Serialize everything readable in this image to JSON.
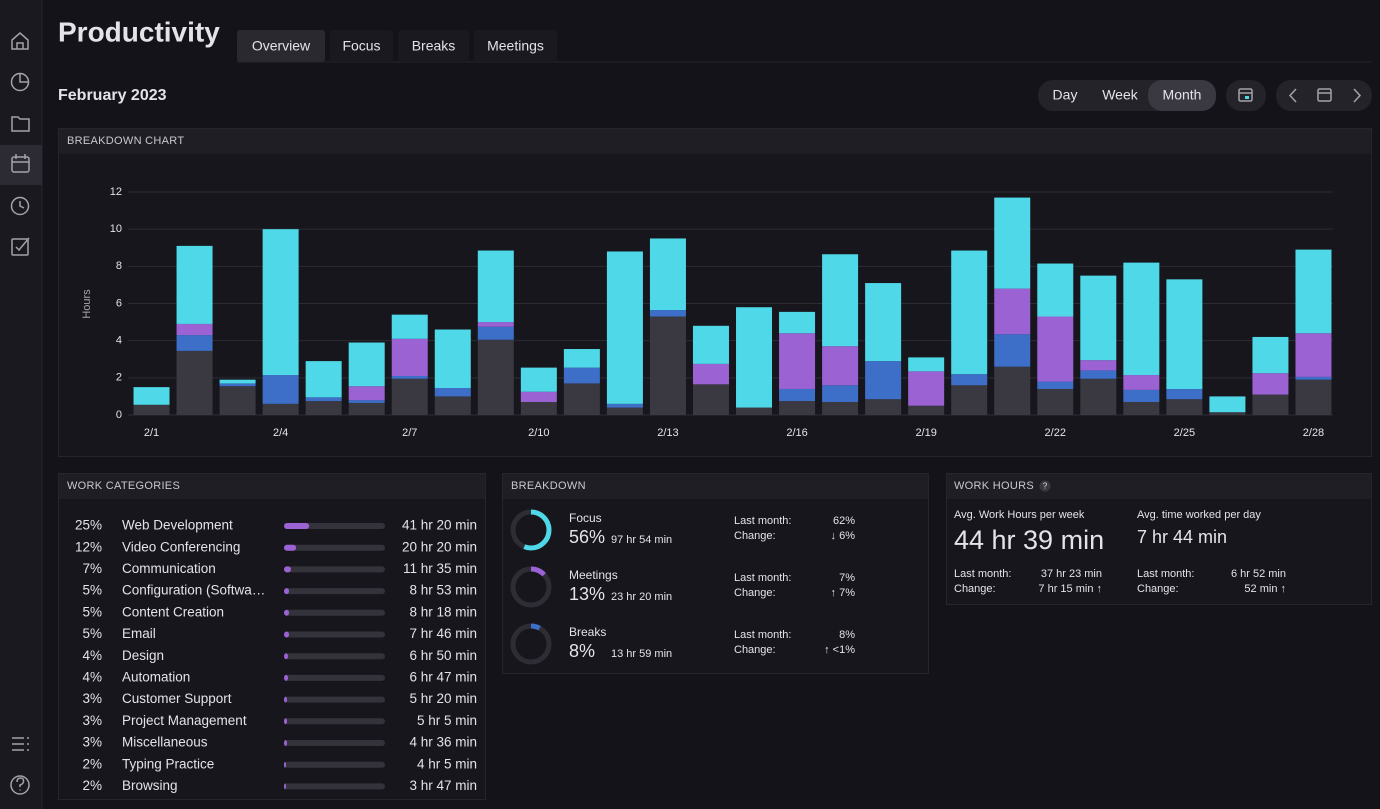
{
  "header": {
    "title": "Productivity",
    "tabs": [
      "Overview",
      "Focus",
      "Breaks",
      "Meetings"
    ],
    "active_tab": 0
  },
  "toolbar": {
    "period": "February 2023",
    "ranges": [
      "Day",
      "Week",
      "Month"
    ],
    "active_range": 2
  },
  "chart_data": {
    "type": "bar",
    "stacked": true,
    "title": "BREAKDOWN CHART",
    "y_label": "Hours",
    "categories": [
      "2/1",
      null,
      null,
      "2/4",
      null,
      null,
      "2/7",
      null,
      null,
      "2/10",
      null,
      null,
      "2/13",
      null,
      null,
      "2/16",
      null,
      null,
      "2/19",
      null,
      null,
      "2/22",
      null,
      null,
      "2/25",
      null,
      null,
      "2/28"
    ],
    "series": [
      {
        "color": "#3a3941",
        "values": [
          0.55,
          3.45,
          1.55,
          0.6,
          0.75,
          0.65,
          1.95,
          1.0,
          4.05,
          0.7,
          1.7,
          0.4,
          5.3,
          1.65,
          0.4,
          0.75,
          0.7,
          0.85,
          0.5,
          1.6,
          2.6,
          1.4,
          1.95,
          0.7,
          0.85,
          0.15,
          1.1,
          1.9
        ]
      },
      {
        "color": "#3d6fc8",
        "values": [
          0,
          0.85,
          0.15,
          1.55,
          0.2,
          0.15,
          0.15,
          0.45,
          0.7,
          0,
          0.85,
          0.2,
          0.35,
          0,
          0,
          0.65,
          0.9,
          2.05,
          0,
          0.6,
          1.75,
          0.4,
          0.45,
          0.65,
          0.55,
          0,
          0,
          0.15
        ]
      },
      {
        "color": "#9b62d4",
        "values": [
          0,
          0.6,
          0,
          0,
          0,
          0.75,
          2.0,
          0,
          0.25,
          0.55,
          0,
          0,
          0,
          1.1,
          0,
          3.0,
          2.1,
          0,
          1.85,
          0,
          2.45,
          3.5,
          0.55,
          0.8,
          0,
          0,
          1.15,
          2.35
        ]
      },
      {
        "color": "#4fd8e8",
        "values": [
          0.95,
          4.2,
          0.2,
          7.85,
          1.95,
          2.35,
          1.3,
          3.15,
          3.85,
          1.3,
          1.0,
          8.2,
          3.85,
          2.05,
          5.4,
          1.15,
          4.95,
          4.2,
          0.75,
          6.65,
          4.9,
          2.85,
          4.55,
          6.05,
          5.9,
          0.85,
          1.95,
          4.5
        ]
      }
    ],
    "ylim": [
      0,
      12
    ],
    "yticks": [
      0,
      2,
      4,
      6,
      8,
      10,
      12
    ],
    "grid": true
  },
  "work_categories": {
    "title": "WORK CATEGORIES",
    "bar_color": "#9b62d4",
    "rows": [
      {
        "share": 25,
        "share_label": "25%",
        "name": "Web Development",
        "time": "41 hr 20 min"
      },
      {
        "share": 12,
        "share_label": "12%",
        "name": "Video Conferencing",
        "time": "20 hr 20 min"
      },
      {
        "share": 7,
        "share_label": "7%",
        "name": "Communication",
        "time": "11 hr 35 min"
      },
      {
        "share": 5,
        "share_label": "5%",
        "name": "Configuration (Softwa…",
        "time": "8 hr 53 min"
      },
      {
        "share": 5,
        "share_label": "5%",
        "name": "Content Creation",
        "time": "8 hr 18 min"
      },
      {
        "share": 5,
        "share_label": "5%",
        "name": "Email",
        "time": "7 hr 46 min"
      },
      {
        "share": 4,
        "share_label": "4%",
        "name": "Design",
        "time": "6 hr 50 min"
      },
      {
        "share": 4,
        "share_label": "4%",
        "name": "Automation",
        "time": "6 hr 47 min"
      },
      {
        "share": 3,
        "share_label": "3%",
        "name": "Customer Support",
        "time": "5 hr 20 min"
      },
      {
        "share": 3,
        "share_label": "3%",
        "name": "Project Management",
        "time": "5 hr 5 min"
      },
      {
        "share": 3,
        "share_label": "3%",
        "name": "Miscellaneous",
        "time": "4 hr 36 min"
      },
      {
        "share": 2,
        "share_label": "2%",
        "name": "Typing Practice",
        "time": "4 hr 5 min"
      },
      {
        "share": 2,
        "share_label": "2%",
        "name": "Browsing",
        "time": "3 hr 47 min"
      }
    ]
  },
  "breakdown": {
    "title": "BREAKDOWN",
    "last_month_label": "Last month:",
    "change_label": "Change:",
    "rows": [
      {
        "name": "Focus",
        "share": 56,
        "share_label": "56%",
        "time": "97 hr 54 min",
        "color": "#4fd8e8",
        "last_month": "62%",
        "change": "↓ 6%"
      },
      {
        "name": "Meetings",
        "share": 13,
        "share_label": "13%",
        "time": "23 hr 20 min",
        "color": "#9b62d4",
        "last_month": "7%",
        "change": "↑ 7%"
      },
      {
        "name": "Breaks",
        "share": 8,
        "share_label": "8%",
        "time": "13 hr 59 min",
        "color": "#3d6fc8",
        "last_month": "8%",
        "change": "↑ <1%"
      }
    ]
  },
  "work_hours": {
    "title": "WORK HOURS",
    "help": "?",
    "last_month_label": "Last month:",
    "change_label": "Change:",
    "metrics": [
      {
        "label": "Avg. Work Hours per week",
        "value": "44 hr 39 min",
        "last_month": "37 hr 23 min",
        "change": "7 hr 15 min ↑"
      },
      {
        "label": "Avg. time worked per day",
        "value": "7 hr 44 min",
        "last_month": "6 hr 52 min",
        "change": "52 min ↑"
      }
    ]
  }
}
